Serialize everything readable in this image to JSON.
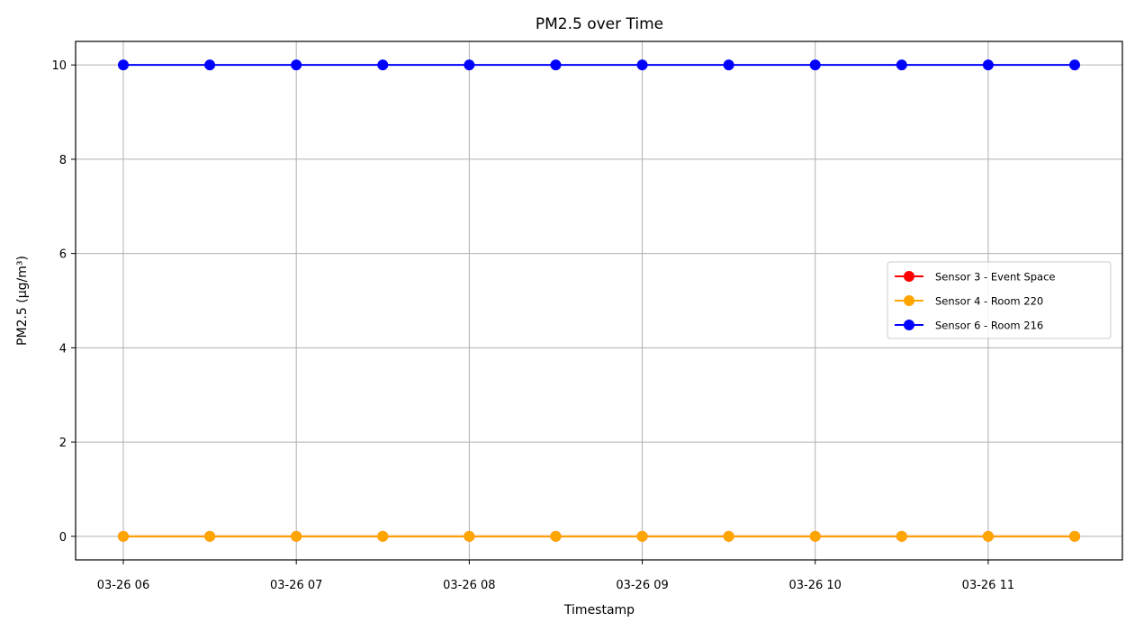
{
  "chart_data": {
    "type": "line",
    "title": "PM2.5 over Time",
    "xlabel": "Timestamp",
    "ylabel": "PM2.5 (µg/m³)",
    "x": [
      "03-26 06:00",
      "03-26 06:30",
      "03-26 07:00",
      "03-26 07:30",
      "03-26 08:00",
      "03-26 08:30",
      "03-26 09:00",
      "03-26 09:30",
      "03-26 10:00",
      "03-26 10:30",
      "03-26 11:00",
      "03-26 11:30"
    ],
    "x_ticks": [
      "03-26 06",
      "03-26 07",
      "03-26 08",
      "03-26 09",
      "03-26 10",
      "03-26 11"
    ],
    "y_ticks": [
      "0",
      "2",
      "4",
      "6",
      "8",
      "10"
    ],
    "ylim": [
      -0.5,
      10.5
    ],
    "grid": true,
    "legend_position": "center-right",
    "series": [
      {
        "name": "Sensor 3 - Event Space",
        "color": "#ff0000",
        "values": [
          0,
          0,
          0,
          0,
          0,
          0,
          0,
          0,
          0,
          0,
          0,
          0
        ]
      },
      {
        "name": "Sensor 4 - Room 220",
        "color": "#ffa500",
        "values": [
          0,
          0,
          0,
          0,
          0,
          0,
          0,
          0,
          0,
          0,
          0,
          0
        ]
      },
      {
        "name": "Sensor 6 - Room 216",
        "color": "#0000ff",
        "values": [
          10,
          10,
          10,
          10,
          10,
          10,
          10,
          10,
          10,
          10,
          10,
          10
        ]
      }
    ]
  }
}
